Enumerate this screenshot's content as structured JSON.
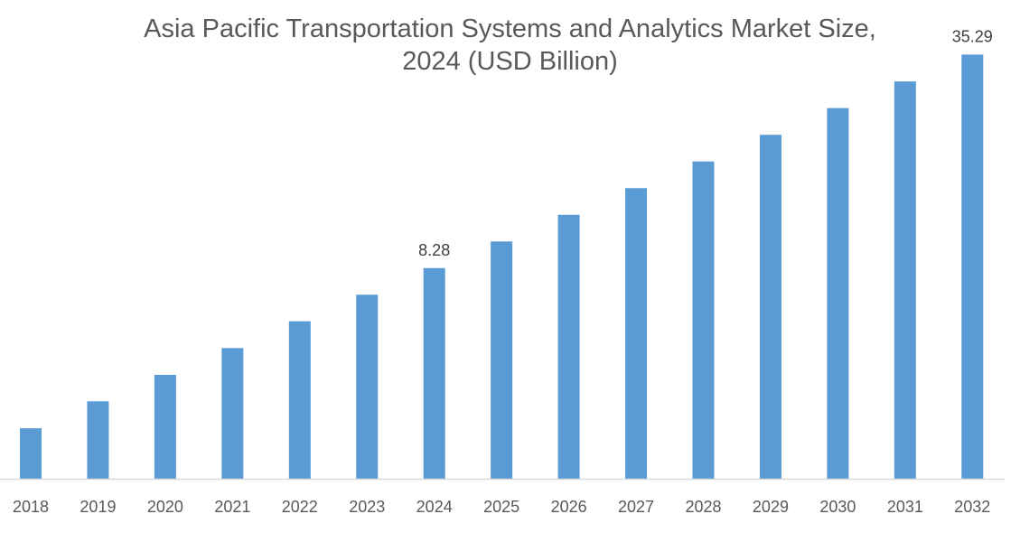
{
  "chart_data": {
    "type": "bar",
    "title_lines": [
      "Asia Pacific Transportation Systems and Analytics Market Size,",
      "2024 (USD Billion)"
    ],
    "categories": [
      "2018",
      "2019",
      "2020",
      "2021",
      "2022",
      "2023",
      "2024",
      "2025",
      "2026",
      "2027",
      "2028",
      "2029",
      "2030",
      "2031",
      "2032"
    ],
    "values": [
      2.79,
      3.35,
      4.01,
      4.81,
      5.77,
      6.91,
      8.28,
      9.92,
      11.89,
      14.25,
      17.08,
      20.47,
      24.54,
      29.41,
      35.29
    ],
    "data_labels": {
      "2024": "8.28",
      "2032": "35.29"
    },
    "xlabel": "",
    "ylabel": "",
    "y_scale": "log",
    "ylim": [
      1.98,
      40
    ],
    "grid": false,
    "bar_color": "#5B9BD5",
    "axis_color": "#D9D9D9",
    "text_color": "#595959"
  }
}
